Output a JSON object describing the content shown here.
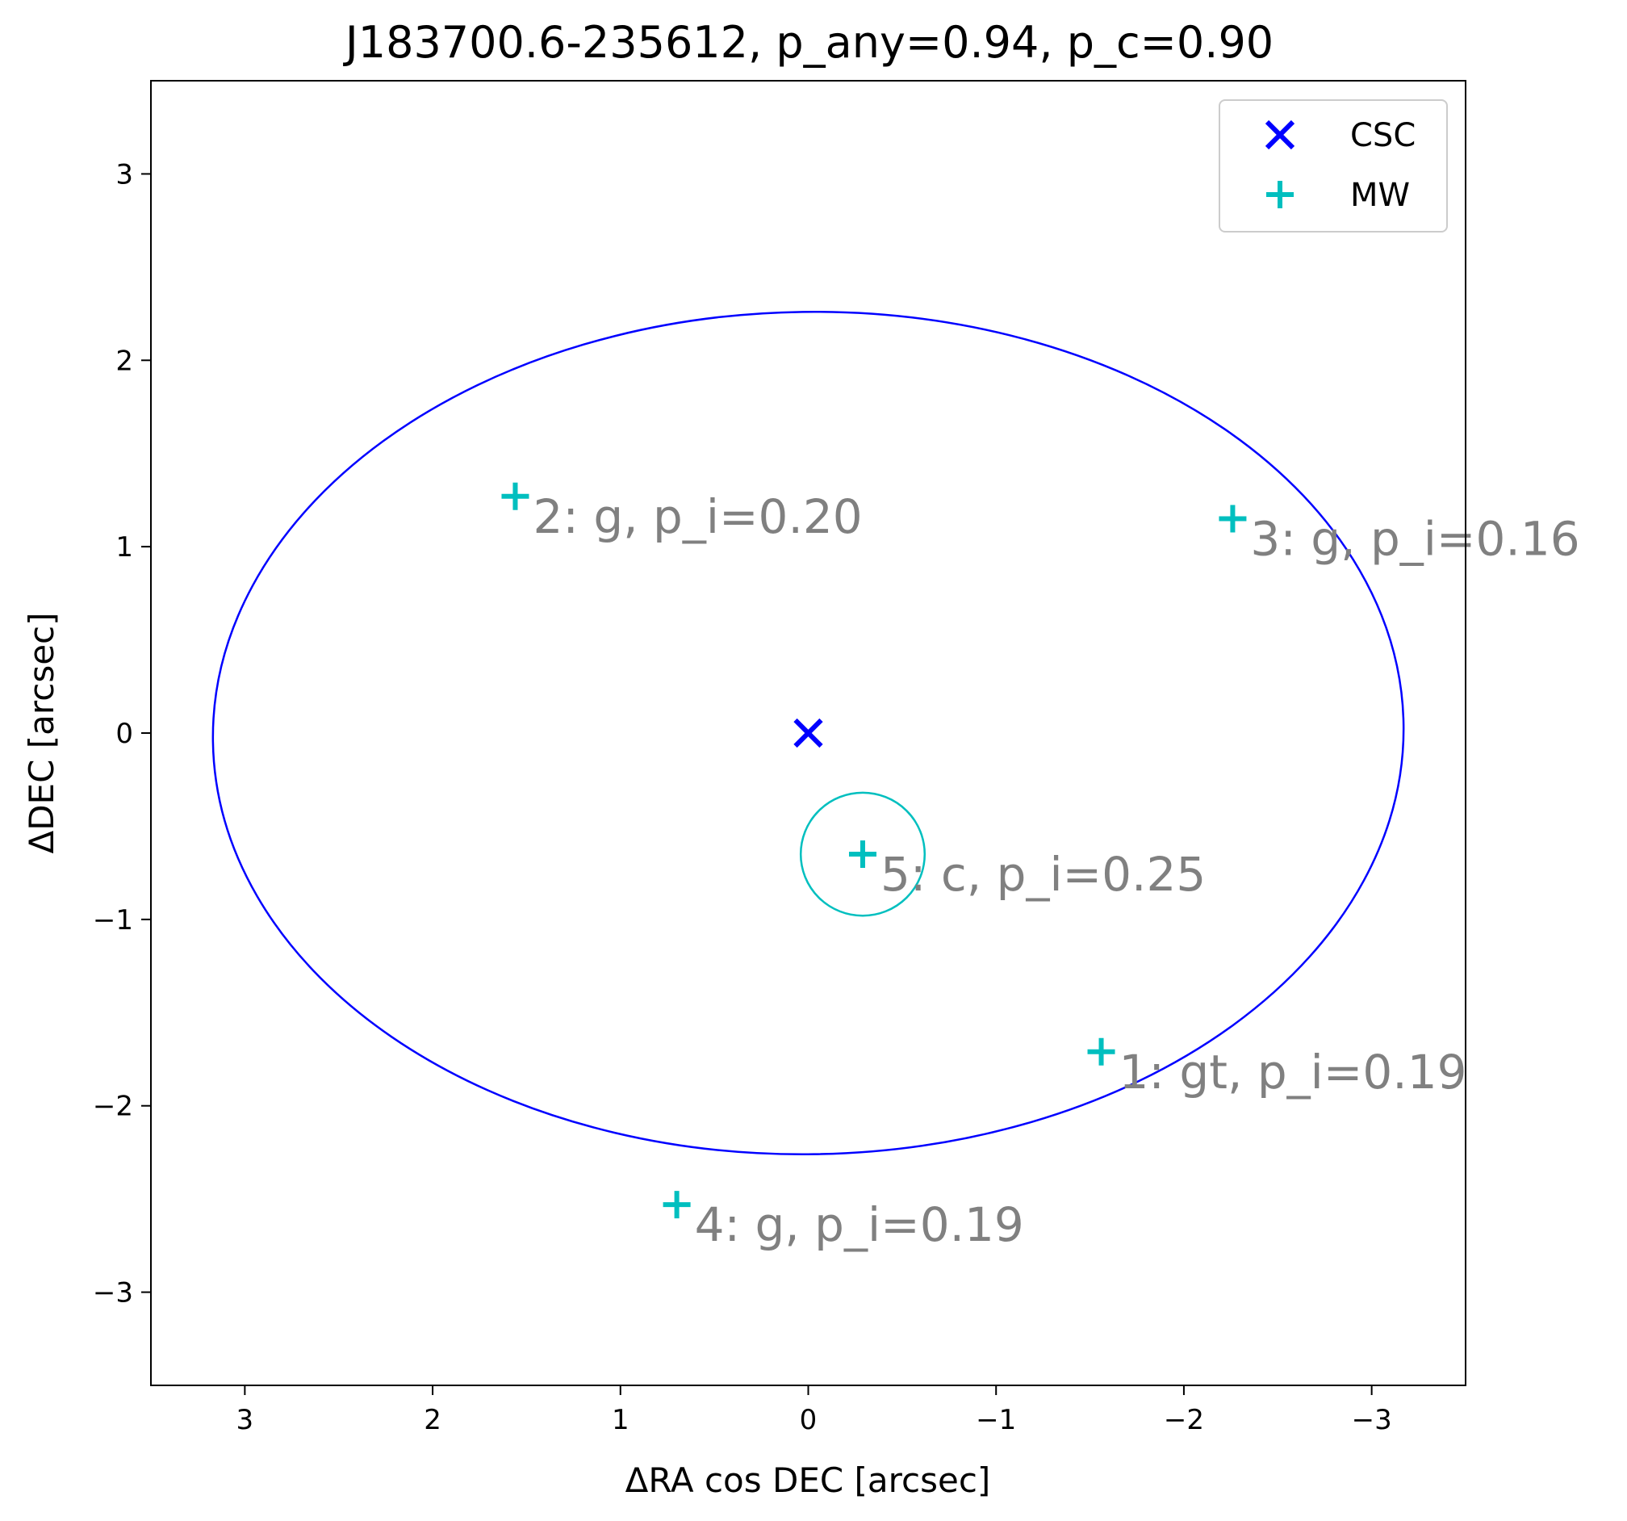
{
  "chart_data": {
    "type": "scatter",
    "title": "J183700.6-235612, p_any=0.94, p_c=0.90",
    "xlabel": "ΔRA cos DEC [arcsec]",
    "ylabel": "ΔDEC [arcsec]",
    "xlim": [
      3.5,
      -3.5
    ],
    "ylim": [
      -3.5,
      3.5
    ],
    "x_inverted": true,
    "xticks": [
      3,
      2,
      1,
      0,
      -1,
      -2,
      -3
    ],
    "yticks": [
      3,
      2,
      1,
      0,
      -1,
      -2,
      -3
    ],
    "xtick_labels": [
      "3",
      "2",
      "1",
      "0",
      "−1",
      "−2",
      "−3"
    ],
    "ytick_labels": [
      "3",
      "2",
      "1",
      "0",
      "−1",
      "−2",
      "−3"
    ],
    "grid": false,
    "legend_position": "top-right",
    "legend": [
      {
        "label": "CSC",
        "marker": "x",
        "color": "#0000ff"
      },
      {
        "label": "MW",
        "marker": "+",
        "color": "#00bfbf"
      }
    ],
    "series": [
      {
        "name": "CSC",
        "marker": "x",
        "color": "#0000ff",
        "points": [
          {
            "x": 0.0,
            "y": 0.0
          }
        ]
      },
      {
        "name": "MW",
        "marker": "+",
        "color": "#00bfbf",
        "points": [
          {
            "x": -1.56,
            "y": -1.71,
            "label": "1: gt, p_i=0.19"
          },
          {
            "x": 1.56,
            "y": 1.27,
            "label": "2: g, p_i=0.20"
          },
          {
            "x": -2.26,
            "y": 1.15,
            "label": "3: g, p_i=0.16"
          },
          {
            "x": 0.7,
            "y": -2.53,
            "label": "4: g, p_i=0.19"
          },
          {
            "x": -0.29,
            "y": -0.65,
            "label": "5: c, p_i=0.25"
          }
        ]
      }
    ],
    "ellipses": [
      {
        "center_x": 0.0,
        "center_y": 0.0,
        "semi_major": 3.17,
        "semi_minor": 2.26,
        "angle_deg": 0.8,
        "color": "#0000ff"
      },
      {
        "center_x": -0.29,
        "center_y": -0.65,
        "semi_major": 0.33,
        "semi_minor": 0.33,
        "angle_deg": 0,
        "color": "#00bfbf"
      }
    ]
  }
}
